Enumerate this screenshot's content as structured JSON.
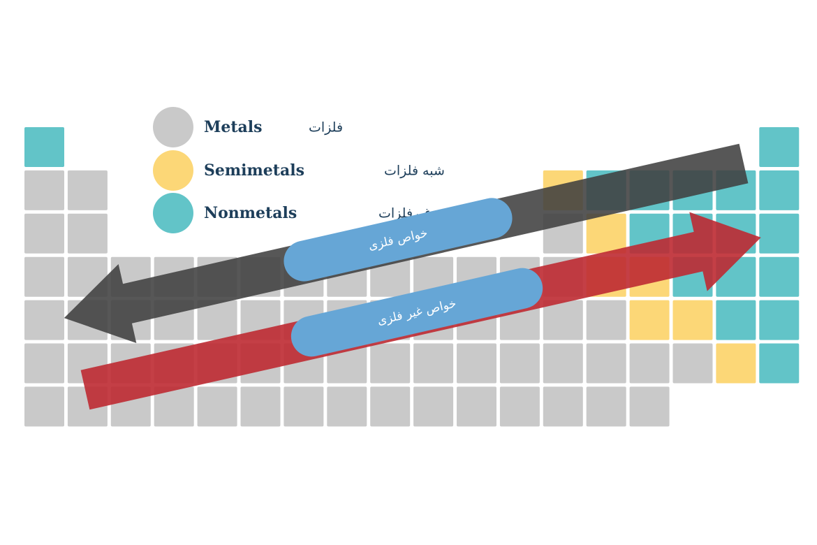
{
  "legend": [
    {
      "label": "Metals",
      "label_fa": "فلزات"
    },
    {
      "label": "Semimetals",
      "label_fa": "شبه فلزات"
    },
    {
      "label": "Nonmetals",
      "label_fa": "غیرفلزات"
    }
  ],
  "arrows": {
    "metallic": "خواص فلزی",
    "nonmetallic": "خواص غیر فلزی"
  }
}
